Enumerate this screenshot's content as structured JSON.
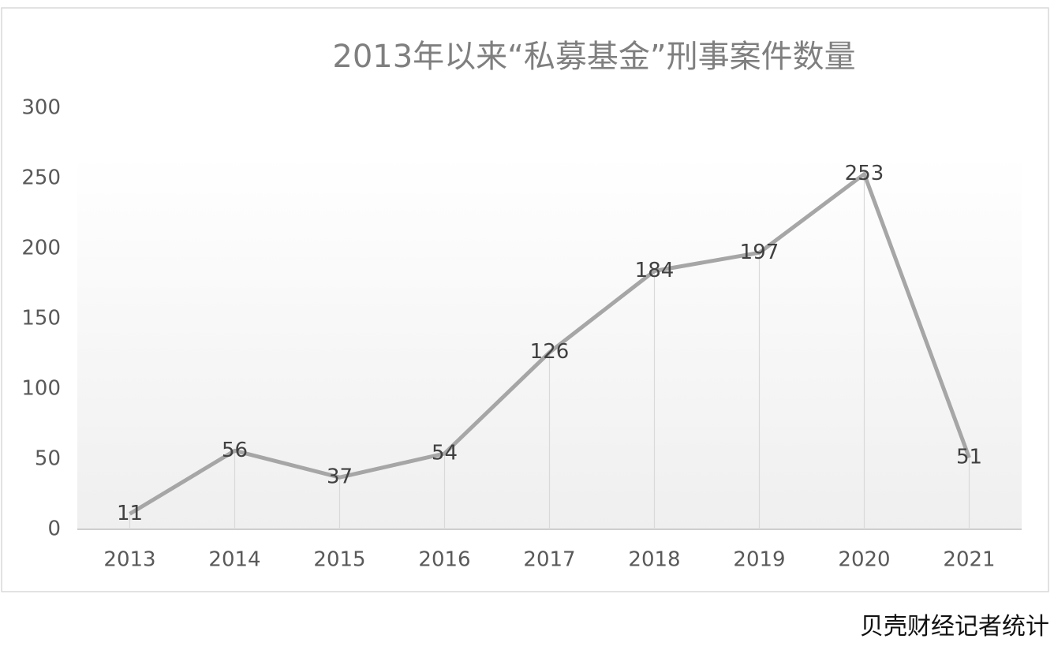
{
  "chart_data": {
    "type": "line",
    "title": "2013年以来“私募基金”刑事案件数量",
    "categories": [
      "2013",
      "2014",
      "2015",
      "2016",
      "2017",
      "2018",
      "2019",
      "2020",
      "2021"
    ],
    "values": [
      11,
      56,
      37,
      54,
      126,
      184,
      197,
      253,
      51
    ],
    "color": "#a6a6a6",
    "ylim": [
      0,
      300
    ],
    "yticks": [
      0,
      50,
      100,
      150,
      200,
      250,
      300
    ],
    "source": "贝壳财经记者统计"
  }
}
